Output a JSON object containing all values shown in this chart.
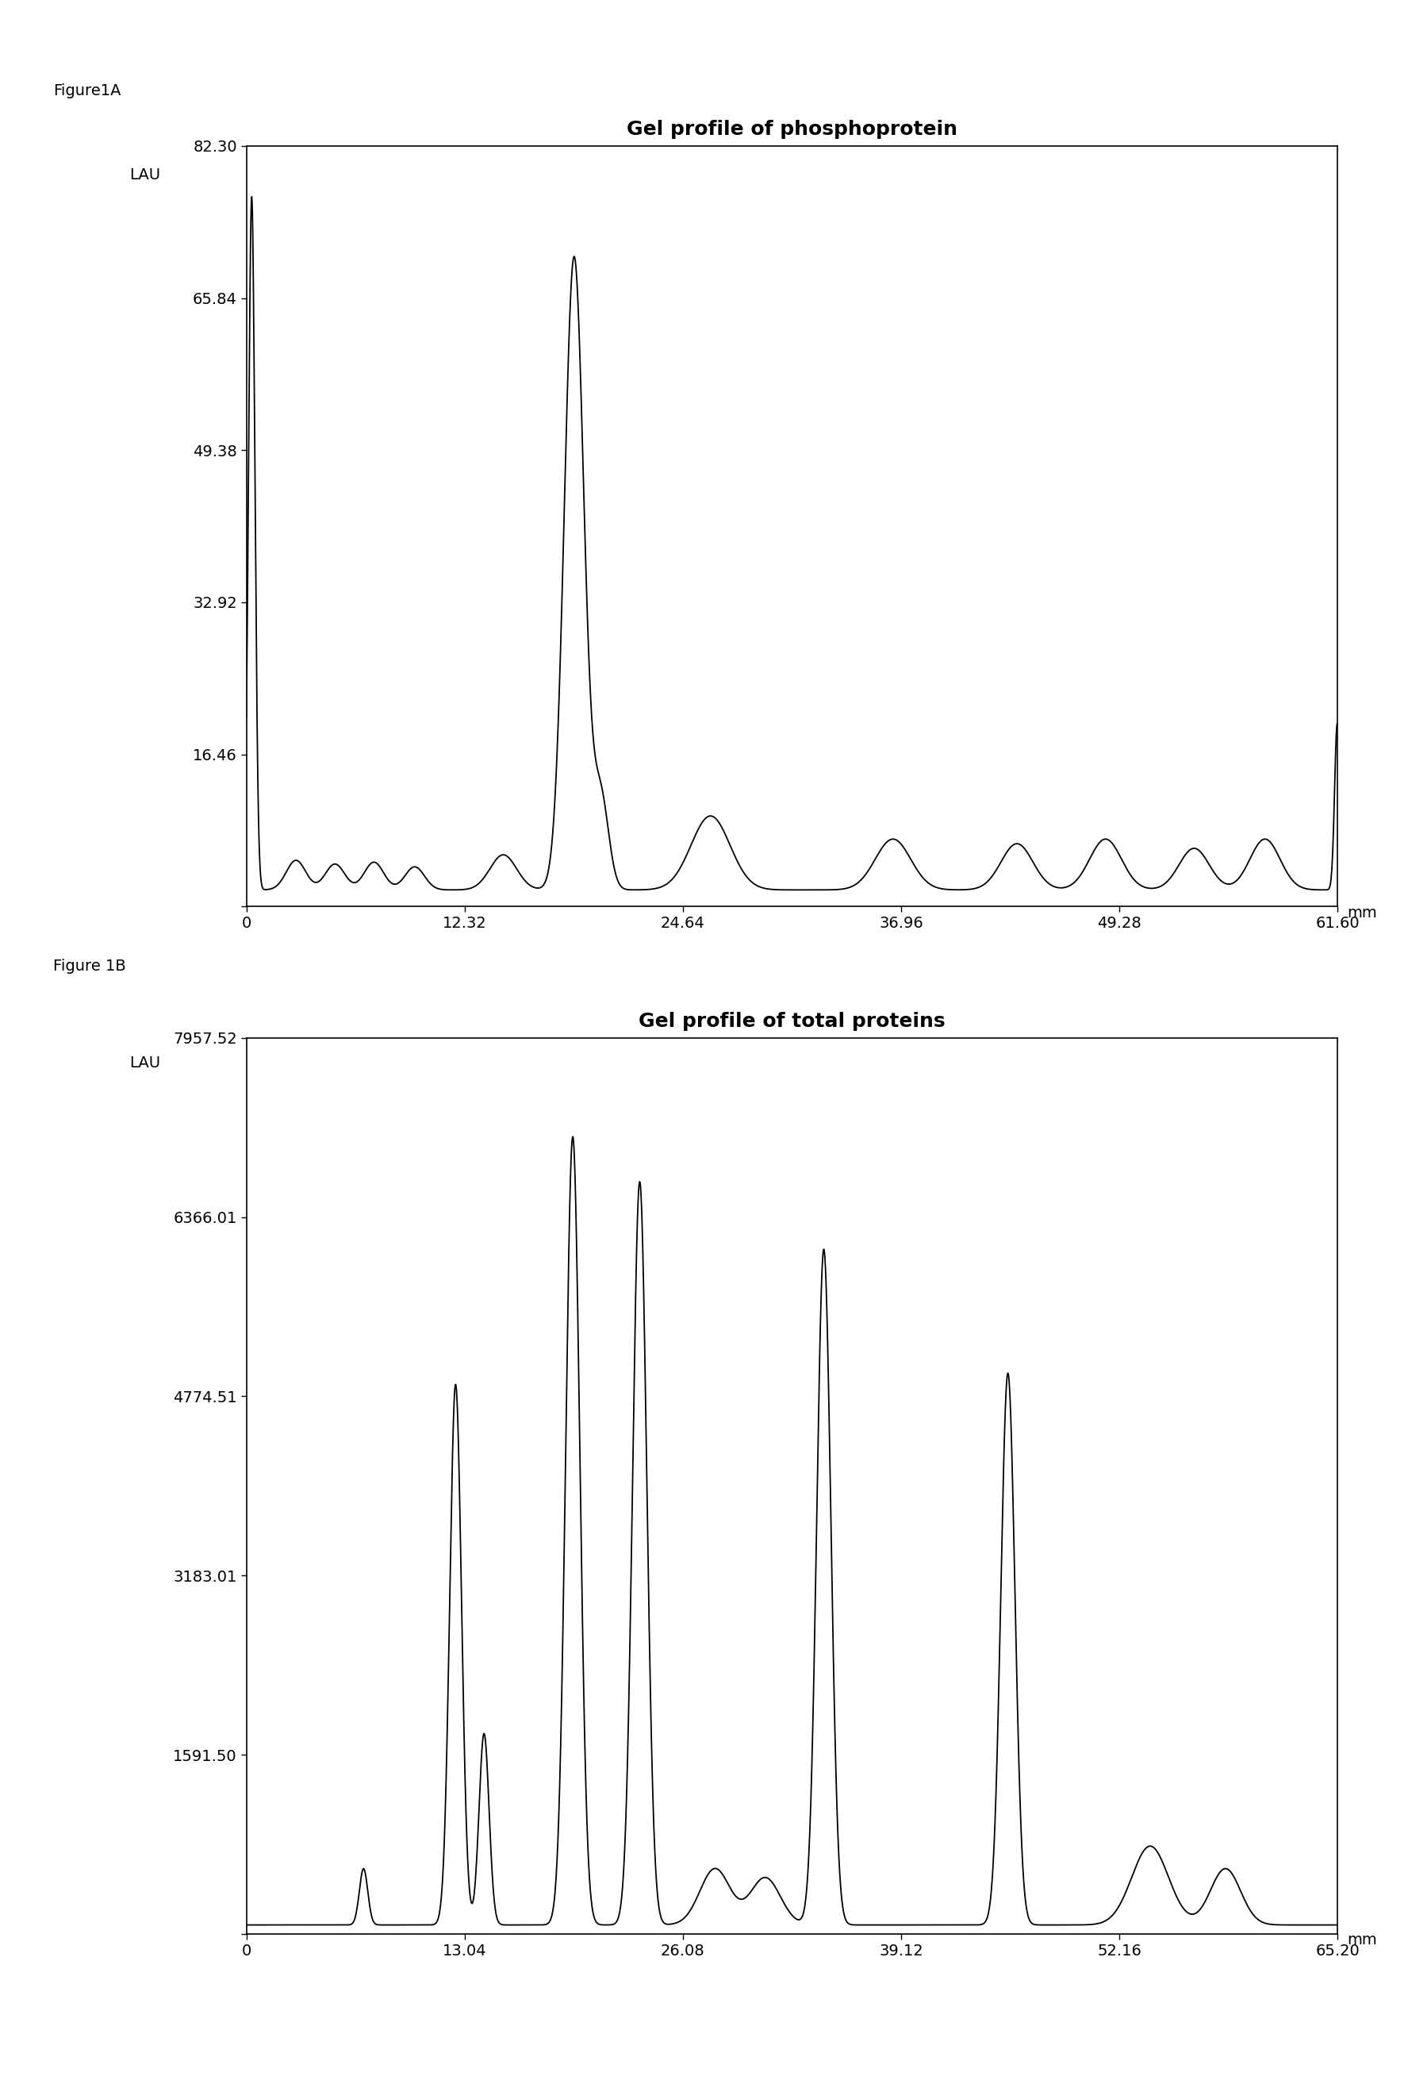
{
  "fig1A": {
    "title": "Gel profile of phosphoprotein",
    "ylabel": "LAU",
    "xlabel": "mm",
    "figure_label": "Figure1A",
    "xlim": [
      0,
      61.6
    ],
    "ylim": [
      0,
      82.3
    ],
    "yticks": [
      0,
      16.46,
      32.92,
      49.38,
      65.84,
      82.3
    ],
    "ytick_labels": [
      "",
      "16.46",
      "32.92",
      "49.38",
      "65.84",
      "82.30"
    ],
    "xticks": [
      0,
      12.32,
      24.64,
      36.96,
      49.28,
      61.6
    ],
    "xtick_labels": [
      "0",
      "12.32",
      "24.64",
      "36.96",
      "49.28",
      "61.60"
    ]
  },
  "fig1B": {
    "title": "Gel profile of total proteins",
    "ylabel": "LAU",
    "xlabel": "mm",
    "figure_label": "Figure 1B",
    "xlim": [
      0,
      65.2
    ],
    "ylim": [
      0,
      7957.52
    ],
    "yticks": [
      0,
      1591.5,
      3183.01,
      4774.51,
      6366.01,
      7957.52
    ],
    "ytick_labels": [
      "",
      "1591.50",
      "3183.01",
      "4774.51",
      "6366.01",
      "7957.52"
    ],
    "xticks": [
      0,
      13.04,
      26.08,
      39.12,
      52.16,
      65.2
    ],
    "xtick_labels": [
      "0",
      "13.04",
      "26.08",
      "39.12",
      "52.16",
      "65.20"
    ]
  },
  "background_color": "#ffffff",
  "line_color": "#000000",
  "font_color": "#000000"
}
